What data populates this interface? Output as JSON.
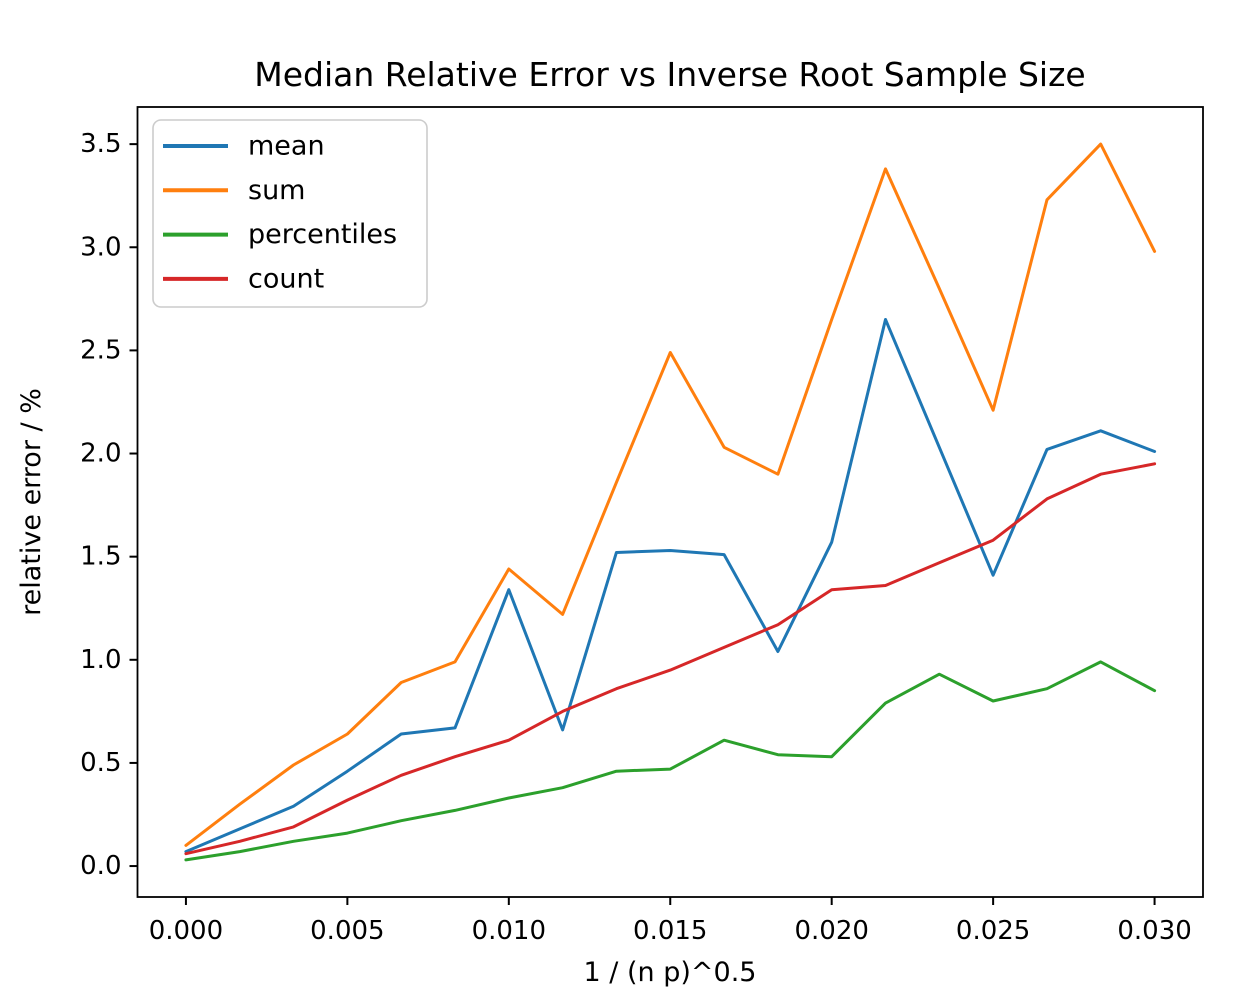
{
  "figure": {
    "background": "#ffffff",
    "frame_color": "#000000",
    "tick_color": "#000000",
    "legend_border_color": "#cccccc",
    "legend_background": "#ffffff"
  },
  "chart_data": {
    "type": "line",
    "title": "Median Relative Error vs Inverse Root Sample Size",
    "xlabel": "1 / (n p)^0.5",
    "ylabel": "relative error / %",
    "grid": false,
    "legend_position": "upper left",
    "xlim": [
      -0.0015,
      0.0315
    ],
    "ylim": [
      -0.15,
      3.68
    ],
    "xticks": {
      "values": [
        0.0,
        0.005,
        0.01,
        0.015,
        0.02,
        0.025,
        0.03
      ],
      "labels": [
        "0.000",
        "0.005",
        "0.010",
        "0.015",
        "0.020",
        "0.025",
        "0.030"
      ]
    },
    "yticks": {
      "values": [
        0.0,
        0.5,
        1.0,
        1.5,
        2.0,
        2.5,
        3.0,
        3.5
      ],
      "labels": [
        "0.0",
        "0.5",
        "1.0",
        "1.5",
        "2.0",
        "2.5",
        "3.0",
        "3.5"
      ]
    },
    "x": [
      0.0,
      0.001667,
      0.003333,
      0.005,
      0.006667,
      0.008333,
      0.01,
      0.011667,
      0.013333,
      0.015,
      0.016667,
      0.018333,
      0.02,
      0.021667,
      0.023333,
      0.025,
      0.026667,
      0.028333,
      0.03
    ],
    "series": [
      {
        "name": "mean",
        "color": "#1f77b4",
        "values": [
          0.07,
          0.18,
          0.29,
          0.46,
          0.64,
          0.67,
          1.34,
          0.66,
          1.52,
          1.53,
          1.51,
          1.04,
          1.57,
          2.65,
          2.03,
          1.41,
          2.02,
          2.11,
          2.01
        ]
      },
      {
        "name": "sum",
        "color": "#ff7f0e",
        "values": [
          0.1,
          0.3,
          0.49,
          0.64,
          0.89,
          0.99,
          1.44,
          1.22,
          1.86,
          2.49,
          2.03,
          1.9,
          2.65,
          3.38,
          2.8,
          2.21,
          3.23,
          3.5,
          2.98
        ]
      },
      {
        "name": "percentiles",
        "color": "#2ca02c",
        "values": [
          0.03,
          0.07,
          0.12,
          0.16,
          0.22,
          0.27,
          0.33,
          0.38,
          0.46,
          0.47,
          0.61,
          0.54,
          0.53,
          0.79,
          0.93,
          0.8,
          0.86,
          0.99,
          0.85
        ]
      },
      {
        "name": "count",
        "color": "#d62728",
        "values": [
          0.06,
          0.12,
          0.19,
          0.32,
          0.44,
          0.53,
          0.61,
          0.75,
          0.86,
          0.95,
          1.06,
          1.17,
          1.34,
          1.36,
          1.47,
          1.58,
          1.78,
          1.9,
          1.95
        ]
      }
    ]
  }
}
